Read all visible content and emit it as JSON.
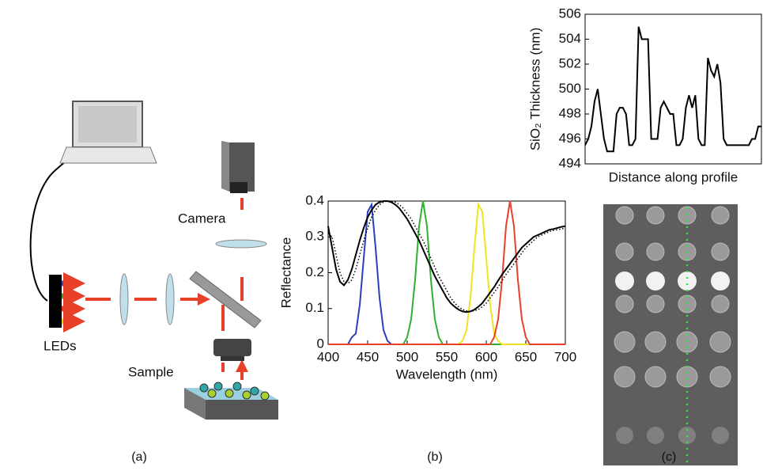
{
  "diagram": {
    "camera": "Camera",
    "leds": "LEDs",
    "sample": "Sample"
  },
  "panel_labels": [
    "(a)",
    "(b)",
    "(c)"
  ],
  "chart_data": [
    {
      "type": "line",
      "xlabel": "Wavelength (nm)",
      "ylabel": "Reflectance",
      "x": [
        400,
        405,
        410,
        415,
        420,
        425,
        430,
        435,
        440,
        445,
        450,
        455,
        460,
        465,
        470,
        475,
        480,
        485,
        490,
        495,
        500,
        505,
        510,
        515,
        520,
        525,
        530,
        535,
        540,
        545,
        550,
        555,
        560,
        565,
        570,
        575,
        580,
        585,
        590,
        595,
        600,
        605,
        610,
        615,
        620,
        625,
        630,
        635,
        640,
        645,
        650,
        655,
        660,
        665,
        670,
        675,
        680,
        685,
        690,
        695,
        700
      ],
      "xlim": [
        400,
        700
      ],
      "xticks": [
        400,
        450,
        500,
        550,
        600,
        650,
        700
      ],
      "ylim": [
        0,
        0.4
      ],
      "yticks": [
        0,
        0.1,
        0.2,
        0.3,
        0.4
      ],
      "series": [
        {
          "color": "#2a3fbf",
          "line_style": "solid",
          "values": [
            0,
            0,
            0,
            0,
            0,
            0,
            0.02,
            0.03,
            0.11,
            0.24,
            0.37,
            0.39,
            0.27,
            0.13,
            0.04,
            0.01,
            0,
            0,
            0,
            0,
            0,
            0,
            0,
            0,
            0,
            0,
            0,
            0,
            0,
            0,
            0,
            0,
            0,
            0,
            0,
            0,
            0,
            0,
            0,
            0,
            0,
            0,
            0,
            0,
            0,
            0,
            0,
            0,
            0,
            0,
            0,
            0,
            0,
            0,
            0,
            0,
            0,
            0,
            0,
            0,
            0
          ]
        },
        {
          "color": "#2fb02f",
          "line_style": "solid",
          "values": [
            0,
            0,
            0,
            0,
            0,
            0,
            0,
            0,
            0,
            0,
            0,
            0,
            0,
            0,
            0,
            0,
            0,
            0,
            0,
            0,
            0.02,
            0.07,
            0.18,
            0.33,
            0.4,
            0.33,
            0.18,
            0.07,
            0.02,
            0,
            0,
            0,
            0,
            0,
            0,
            0,
            0,
            0,
            0,
            0,
            0,
            0,
            0,
            0,
            0,
            0,
            0,
            0,
            0,
            0,
            0,
            0,
            0,
            0,
            0,
            0,
            0,
            0,
            0,
            0,
            0
          ]
        },
        {
          "color": "#f2e422",
          "line_style": "solid",
          "values": [
            0,
            0,
            0,
            0,
            0,
            0,
            0,
            0,
            0,
            0,
            0,
            0,
            0,
            0,
            0,
            0,
            0,
            0,
            0,
            0,
            0,
            0,
            0,
            0,
            0,
            0,
            0,
            0,
            0,
            0,
            0,
            0,
            0,
            0,
            0.01,
            0.04,
            0.13,
            0.27,
            0.39,
            0.37,
            0.24,
            0.11,
            0.03,
            0.01,
            0,
            0,
            0,
            0,
            0,
            0,
            0,
            0,
            0,
            0,
            0,
            0,
            0,
            0,
            0,
            0,
            0
          ]
        },
        {
          "color": "#e8412a",
          "line_style": "solid",
          "values": [
            0,
            0,
            0,
            0,
            0,
            0,
            0,
            0,
            0,
            0,
            0,
            0,
            0,
            0,
            0,
            0,
            0,
            0,
            0,
            0,
            0,
            0,
            0,
            0,
            0,
            0,
            0,
            0,
            0,
            0,
            0,
            0,
            0,
            0,
            0,
            0,
            0,
            0,
            0,
            0,
            0,
            0,
            0.02,
            0.07,
            0.18,
            0.33,
            0.4,
            0.33,
            0.18,
            0.07,
            0.02,
            0,
            0,
            0,
            0,
            0,
            0,
            0,
            0,
            0,
            0
          ]
        },
        {
          "color": "#000000",
          "line_style": "solid",
          "values": [
            0.33,
            0.27,
            0.21,
            0.175,
            0.165,
            0.18,
            0.21,
            0.25,
            0.29,
            0.325,
            0.355,
            0.375,
            0.39,
            0.397,
            0.4,
            0.4,
            0.397,
            0.39,
            0.38,
            0.365,
            0.35,
            0.33,
            0.31,
            0.29,
            0.265,
            0.24,
            0.215,
            0.19,
            0.17,
            0.15,
            0.13,
            0.115,
            0.105,
            0.097,
            0.092,
            0.09,
            0.092,
            0.097,
            0.105,
            0.115,
            0.13,
            0.145,
            0.16,
            0.178,
            0.195,
            0.21,
            0.225,
            0.24,
            0.255,
            0.27,
            0.28,
            0.29,
            0.3,
            0.305,
            0.31,
            0.315,
            0.32,
            0.322,
            0.325,
            0.328,
            0.33
          ]
        },
        {
          "color": "#000000",
          "line_style": "dotted",
          "values": [
            0.31,
            0.3,
            0.25,
            0.2,
            0.175,
            0.17,
            0.18,
            0.21,
            0.25,
            0.29,
            0.325,
            0.355,
            0.375,
            0.39,
            0.397,
            0.4,
            0.4,
            0.397,
            0.39,
            0.38,
            0.365,
            0.35,
            0.33,
            0.31,
            0.29,
            0.265,
            0.24,
            0.215,
            0.19,
            0.17,
            0.15,
            0.13,
            0.115,
            0.105,
            0.097,
            0.094,
            0.092,
            0.094,
            0.097,
            0.105,
            0.115,
            0.13,
            0.145,
            0.16,
            0.178,
            0.195,
            0.21,
            0.225,
            0.24,
            0.255,
            0.27,
            0.28,
            0.29,
            0.3,
            0.305,
            0.31,
            0.315,
            0.318,
            0.32,
            0.322,
            0.325
          ]
        }
      ]
    },
    {
      "type": "line",
      "xlabel": "Distance along profile",
      "ylabel": "SiO₂ Thickness (nm)",
      "ylim": [
        494,
        506
      ],
      "yticks": [
        494,
        496,
        498,
        500,
        502,
        504,
        506
      ],
      "series": [
        {
          "color": "#000000",
          "line_style": "solid",
          "values": [
            495.5,
            496,
            497,
            499,
            500,
            498,
            496,
            495,
            495,
            495,
            498,
            498.5,
            498.5,
            498,
            495.5,
            495.5,
            496,
            505,
            504,
            504,
            504,
            496,
            496,
            496,
            498.5,
            499,
            498.5,
            498,
            498,
            495.5,
            495.5,
            496,
            498.5,
            499.5,
            498.5,
            499.5,
            496,
            495.5,
            495.5,
            502.5,
            501.5,
            501,
            502,
            500.5,
            496,
            495.5,
            495.5,
            495.5,
            495.5,
            495.5,
            495.5,
            495.5,
            495.5,
            496,
            496,
            497,
            497
          ]
        }
      ]
    }
  ]
}
